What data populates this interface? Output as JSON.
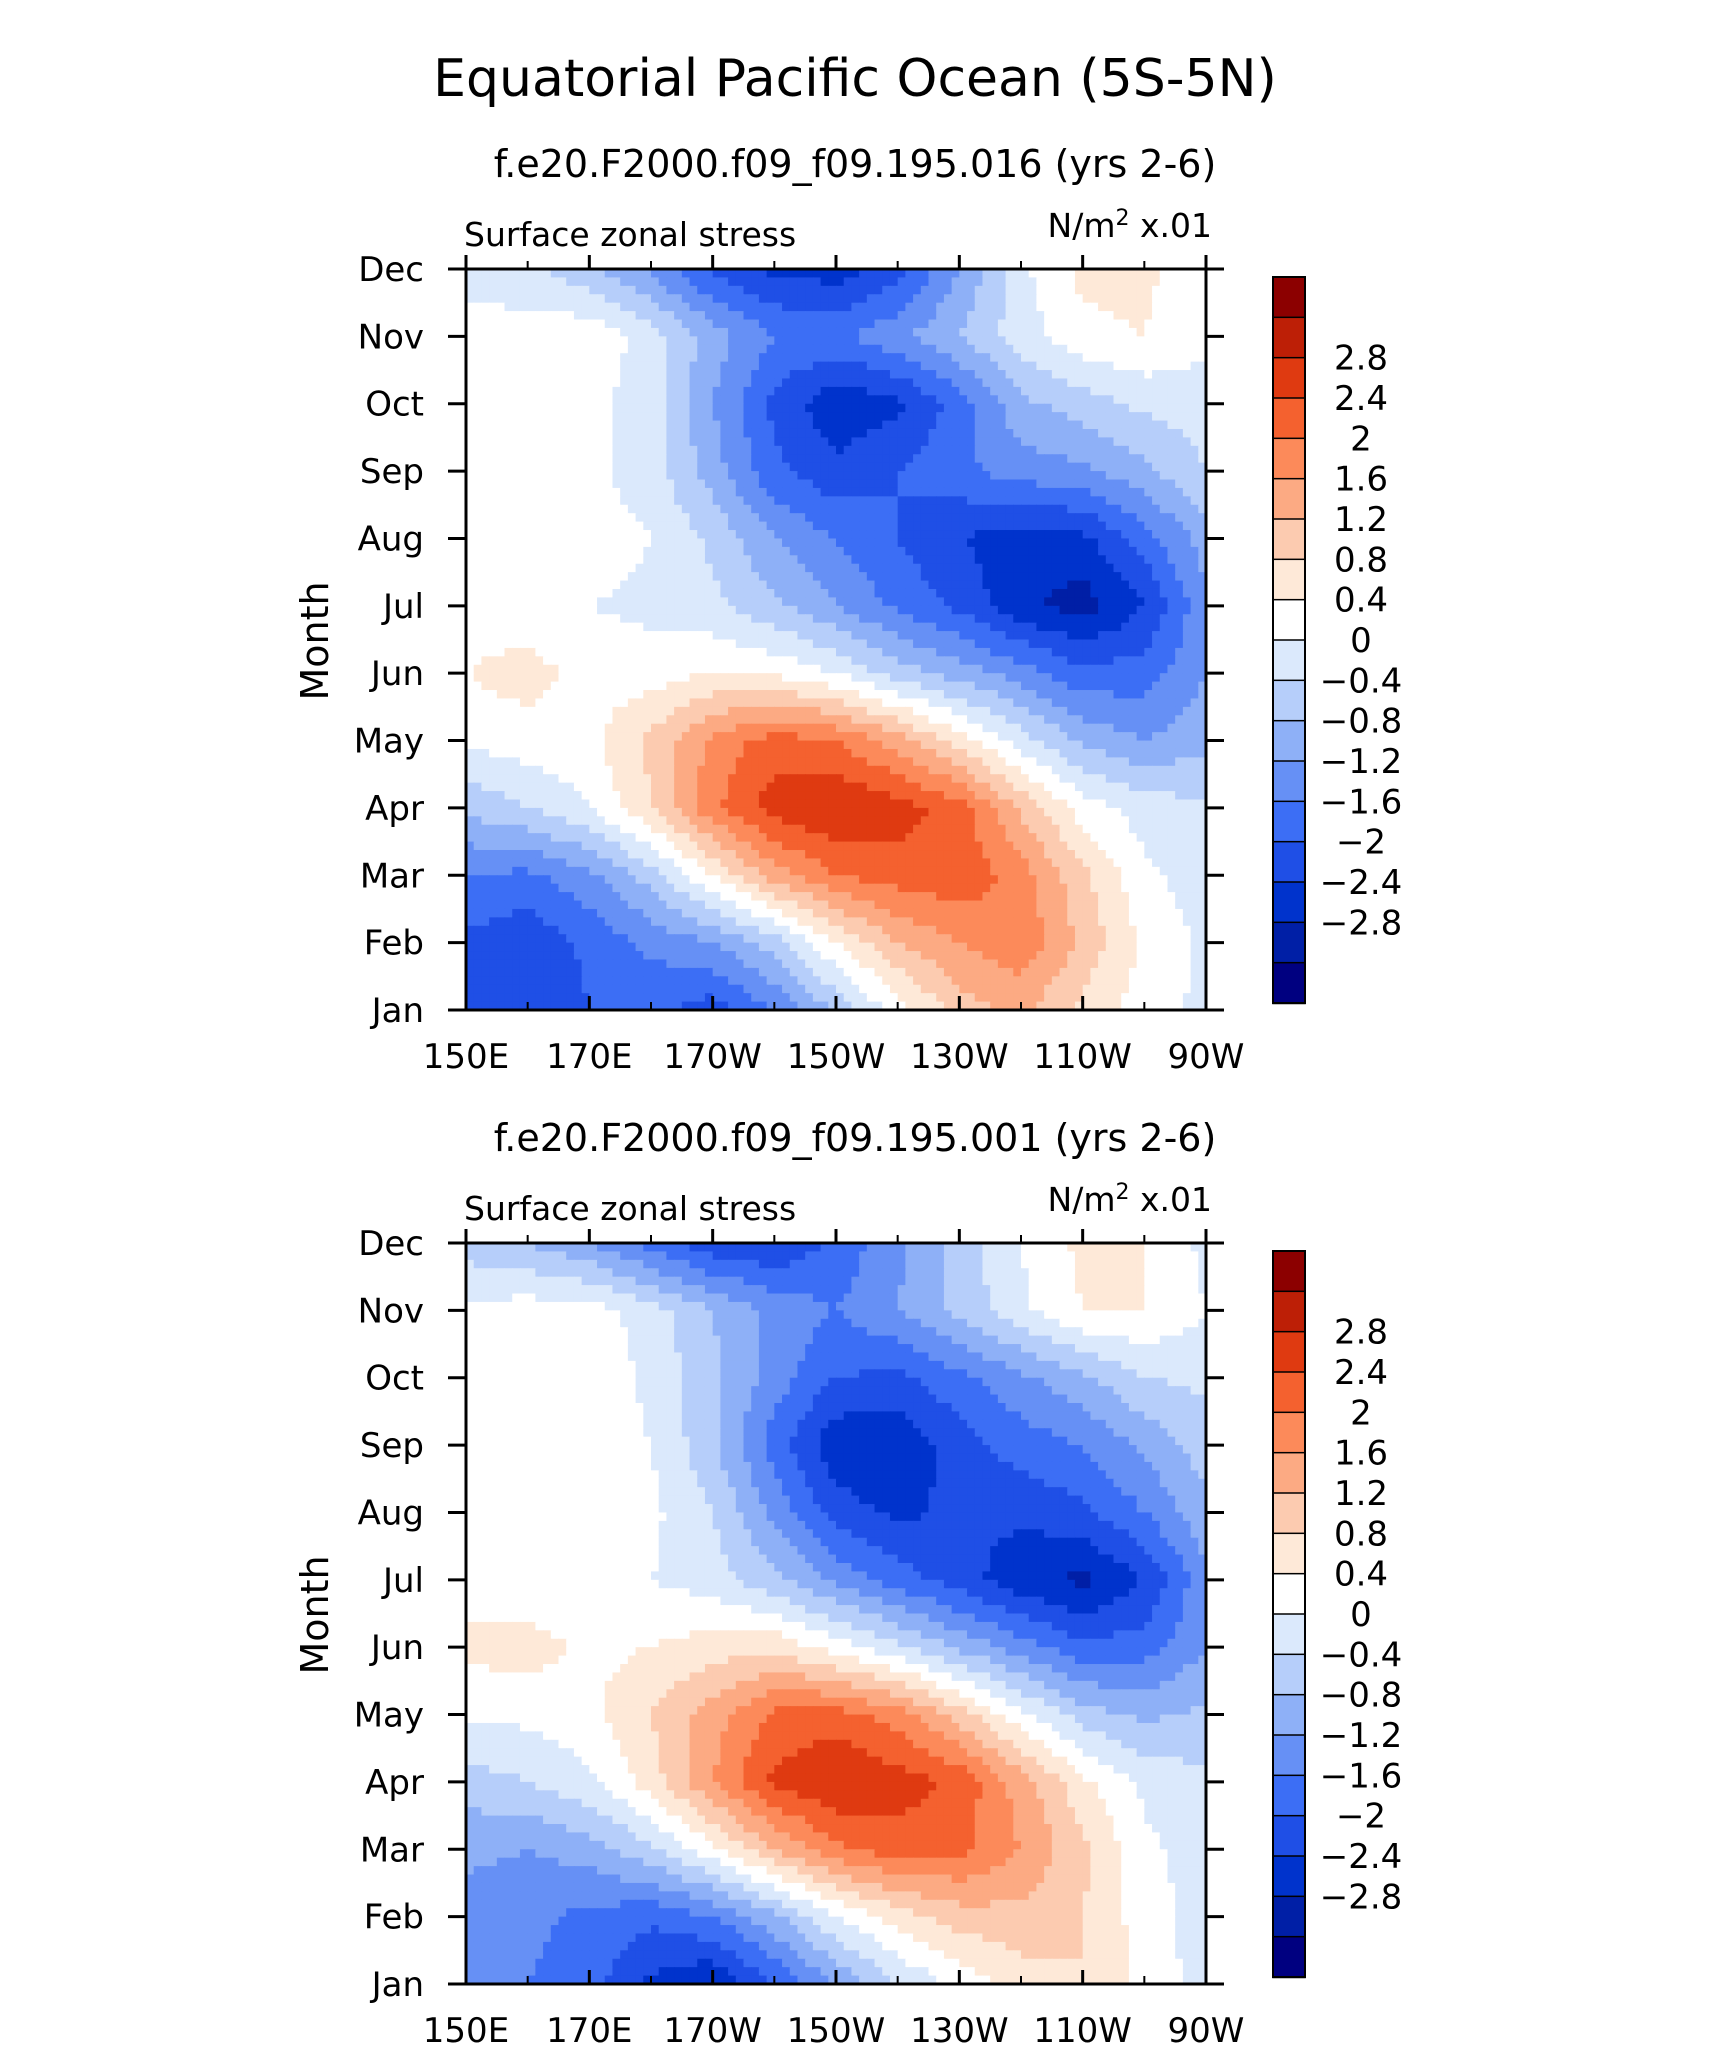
{
  "title": "Equatorial Pacific Ocean (5S-5N)",
  "colors": {
    "levels_colors": [
      "#000080",
      "#001fa6",
      "#0033cc",
      "#1f4fe6",
      "#3c6ef5",
      "#6690f5",
      "#8eb0f7",
      "#b6cefa",
      "#dbe9fc",
      "#ffffff",
      "#fee9d8",
      "#fccbb0",
      "#fcaa83",
      "#fc8a5a",
      "#f4612f",
      "#df3a11",
      "#bd1f06",
      "#8c0000"
    ]
  },
  "chart_data": [
    {
      "type": "heatmap",
      "title": "f.e20.F2000.f09_f09.195.016 (yrs 2-6)",
      "variable_label": "Surface zonal stress",
      "units_label": "N/m",
      "units_sup": "2",
      "units_suffix": " x.01",
      "ylabel": "Month",
      "x_ticks": [
        "150E",
        "170E",
        "170W",
        "150W",
        "130W",
        "110W",
        "90W"
      ],
      "x_tick_lon": [
        150,
        170,
        190,
        210,
        230,
        250,
        270
      ],
      "x_range": [
        150,
        270
      ],
      "y_ticks": [
        "Jan",
        "Feb",
        "Mar",
        "Apr",
        "May",
        "Jun",
        "Jul",
        "Aug",
        "Sep",
        "Oct",
        "Nov",
        "Dec"
      ],
      "colorbar_labels": [
        "2.8",
        "2.4",
        "2",
        "1.6",
        "1.2",
        "0.8",
        "0.4",
        "0",
        "−0.4",
        "−0.8",
        "−1.2",
        "−1.6",
        "−2",
        "−2.4",
        "−2.8"
      ],
      "levels": [
        -3.2,
        -2.8,
        -2.4,
        -2.0,
        -1.6,
        -1.2,
        -0.8,
        -0.4,
        0,
        0.4,
        0.8,
        1.2,
        1.6,
        2.0,
        2.4,
        2.8,
        3.2
      ],
      "lon": [
        150,
        160,
        170,
        180,
        190,
        200,
        210,
        220,
        230,
        240,
        250,
        260,
        270
      ],
      "z": [
        [
          -1.8,
          -2.0,
          -1.6,
          -1.5,
          -1.8,
          -1.2,
          -0.3,
          0.6,
          1.4,
          1.7,
          1.1,
          0.6,
          0.3
        ],
        [
          -1.7,
          -1.9,
          -1.5,
          -1.1,
          -0.8,
          -0.2,
          0.8,
          1.6,
          2.0,
          2.3,
          1.5,
          0.7,
          0.3
        ],
        [
          -1.2,
          -1.3,
          -0.9,
          -0.2,
          0.8,
          1.8,
          2.4,
          2.6,
          2.7,
          2.2,
          1.3,
          0.5,
          0.2
        ],
        [
          -0.3,
          0.0,
          0.4,
          1.2,
          2.3,
          3.0,
          3.2,
          3.0,
          2.6,
          1.5,
          0.6,
          0.2,
          0.1
        ],
        [
          0.5,
          0.6,
          0.7,
          1.3,
          2.1,
          2.6,
          2.4,
          1.8,
          1.0,
          0.2,
          -0.5,
          -0.8,
          -0.5
        ],
        [
          0.8,
          1.0,
          0.6,
          0.6,
          0.8,
          0.7,
          0.4,
          -0.2,
          -0.6,
          -1.0,
          -1.5,
          -1.4,
          -0.8
        ],
        [
          0.6,
          0.5,
          0.4,
          0.3,
          0.1,
          -0.3,
          -0.8,
          -1.3,
          -1.7,
          -2.3,
          -2.6,
          -2.0,
          -0.9
        ],
        [
          0.5,
          0.5,
          0.6,
          0.4,
          -0.1,
          -0.8,
          -1.2,
          -1.6,
          -2.0,
          -2.2,
          -2.1,
          -1.4,
          -0.6
        ],
        [
          0.6,
          0.5,
          0.5,
          0.2,
          -0.6,
          -1.5,
          -1.9,
          -1.6,
          -1.3,
          -1.0,
          -0.9,
          -0.5,
          0.0
        ],
        [
          0.6,
          0.5,
          0.5,
          0.2,
          -0.8,
          -1.7,
          -2.3,
          -2.1,
          -1.4,
          -0.5,
          -0.2,
          0.1,
          0.2
        ],
        [
          0.6,
          0.6,
          0.7,
          0.2,
          -0.6,
          -1.2,
          -1.3,
          -0.9,
          -0.4,
          0.2,
          0.7,
          0.8,
          0.5
        ],
        [
          0.2,
          0.1,
          -0.3,
          -0.9,
          -1.7,
          -2.1,
          -2.2,
          -1.8,
          -0.8,
          0.3,
          0.9,
          0.9,
          0.5
        ]
      ]
    },
    {
      "type": "heatmap",
      "title": "f.e20.F2000.f09_f09.195.001 (yrs 2-6)",
      "variable_label": "Surface zonal stress",
      "units_label": "N/m",
      "units_sup": "2",
      "units_suffix": " x.01",
      "ylabel": "Month",
      "x_ticks": [
        "150E",
        "170E",
        "170W",
        "150W",
        "130W",
        "110W",
        "90W"
      ],
      "x_tick_lon": [
        150,
        170,
        190,
        210,
        230,
        250,
        270
      ],
      "x_range": [
        150,
        270
      ],
      "y_ticks": [
        "Jan",
        "Feb",
        "Mar",
        "Apr",
        "May",
        "Jun",
        "Jul",
        "Aug",
        "Sep",
        "Oct",
        "Nov",
        "Dec"
      ],
      "colorbar_labels": [
        "2.8",
        "2.4",
        "2",
        "1.6",
        "1.2",
        "0.8",
        "0.4",
        "0",
        "−0.4",
        "−0.8",
        "−1.2",
        "−1.6",
        "−2",
        "−2.4",
        "−2.8"
      ],
      "levels": [
        -3.2,
        -2.8,
        -2.4,
        -2.0,
        -1.6,
        -1.2,
        -0.8,
        -0.4,
        0,
        0.4,
        0.8,
        1.2,
        1.6,
        2.0,
        2.4,
        2.8,
        3.2
      ],
      "lon": [
        150,
        160,
        170,
        180,
        190,
        200,
        210,
        220,
        230,
        240,
        250,
        260,
        270
      ],
      "z": [
        [
          -0.9,
          -1.2,
          -1.4,
          -2.1,
          -2.4,
          -1.6,
          -0.8,
          0.0,
          0.5,
          1.0,
          1.2,
          0.7,
          0.2
        ],
        [
          -1.0,
          -1.1,
          -1.3,
          -1.5,
          -1.2,
          -0.5,
          0.4,
          1.0,
          1.4,
          1.5,
          1.2,
          0.6,
          0.2
        ],
        [
          -0.7,
          -0.8,
          -0.6,
          -0.1,
          0.7,
          1.6,
          2.3,
          2.6,
          2.5,
          2.0,
          1.3,
          0.5,
          0.2
        ],
        [
          -0.2,
          0.0,
          0.3,
          1.0,
          2.0,
          2.9,
          3.2,
          3.0,
          2.7,
          1.8,
          0.9,
          0.3,
          0.1
        ],
        [
          0.5,
          0.5,
          0.7,
          1.2,
          1.8,
          2.5,
          2.6,
          2.2,
          1.4,
          0.5,
          -0.2,
          -0.5,
          -0.3
        ],
        [
          0.9,
          1.0,
          0.7,
          0.8,
          1.0,
          1.1,
          0.6,
          0.1,
          -0.5,
          -1.0,
          -1.5,
          -1.4,
          -0.8
        ],
        [
          0.6,
          0.5,
          0.4,
          0.4,
          0.2,
          -0.3,
          -0.9,
          -1.4,
          -1.8,
          -2.3,
          -2.5,
          -2.0,
          -0.9
        ],
        [
          0.5,
          0.5,
          0.6,
          0.5,
          0.0,
          -0.9,
          -1.8,
          -2.1,
          -1.9,
          -1.9,
          -1.7,
          -1.2,
          -0.5
        ],
        [
          0.5,
          0.6,
          0.6,
          0.4,
          -0.3,
          -1.4,
          -2.3,
          -2.3,
          -1.8,
          -1.4,
          -1.2,
          -0.7,
          -0.2
        ],
        [
          0.5,
          0.6,
          0.7,
          0.3,
          -0.3,
          -1.0,
          -1.6,
          -1.7,
          -1.3,
          -0.9,
          -0.5,
          0.0,
          0.1
        ],
        [
          0.5,
          0.6,
          0.6,
          0.2,
          -0.4,
          -0.9,
          -1.2,
          -0.8,
          -0.3,
          0.3,
          0.8,
          0.8,
          0.4
        ],
        [
          -0.2,
          -0.4,
          -0.8,
          -1.4,
          -1.9,
          -2.0,
          -1.5,
          -0.9,
          -0.2,
          0.4,
          0.9,
          0.8,
          0.3
        ]
      ]
    }
  ]
}
